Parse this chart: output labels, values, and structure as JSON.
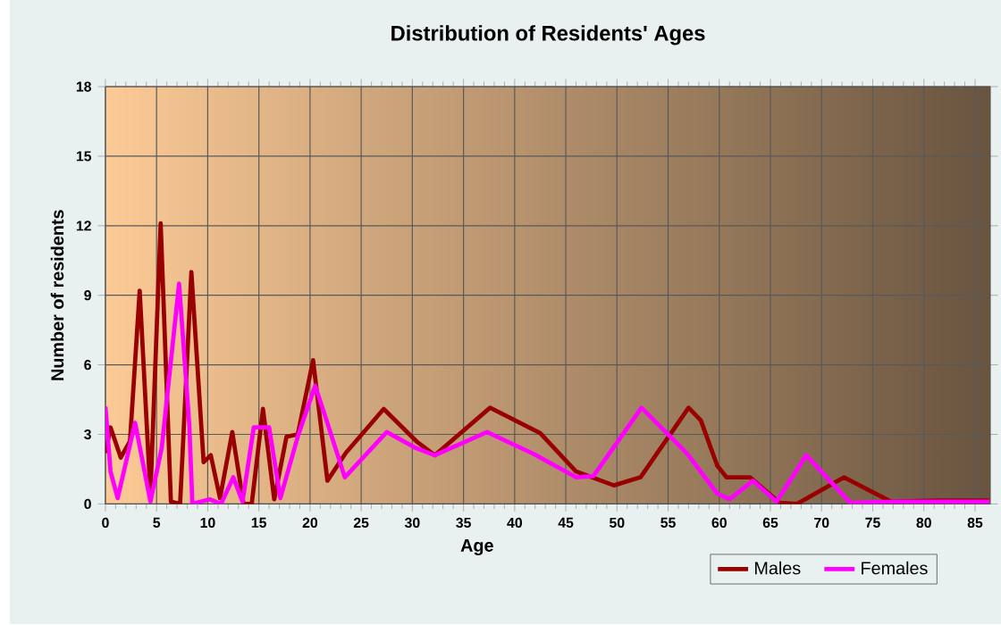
{
  "chart_data": {
    "type": "line",
    "title": "Distribution of Residents' Ages",
    "xlabel": "Age",
    "ylabel": "Number of residents",
    "xlim": [
      0,
      86.5
    ],
    "ylim": [
      0,
      18
    ],
    "xticks": [
      0,
      5,
      10,
      15,
      20,
      25,
      30,
      35,
      40,
      45,
      50,
      55,
      60,
      65,
      70,
      75,
      80,
      85
    ],
    "yticks": [
      0,
      3,
      6,
      9,
      12,
      15,
      18
    ],
    "grid": true,
    "legend": "bottom right",
    "marker": "none",
    "series": [
      {
        "name": "Males",
        "color": "#990000",
        "x": [
          0,
          0.5,
          1.5,
          2.4,
          3.35,
          4.4,
          5.4,
          6.4,
          7.3,
          8.4,
          9.6,
          10.3,
          11.2,
          12.4,
          13.5,
          14.3,
          15.4,
          16.5,
          17.7,
          18.8,
          20.3,
          21.7,
          23.5,
          27.2,
          30.4,
          32.2,
          37.6,
          42.5,
          46,
          49.7,
          52.3,
          57,
          58.2,
          59.8,
          60.7,
          63,
          65.9,
          67.6,
          72.2,
          76.8,
          81.4,
          86.4
        ],
        "values": [
          2.2,
          3.3,
          2,
          2.7,
          9.2,
          0.4,
          12.1,
          0.1,
          0,
          10,
          1.8,
          2.1,
          0.25,
          3.1,
          0,
          0,
          4.1,
          0.2,
          2.9,
          3,
          6.2,
          1,
          2.2,
          4.1,
          2.7,
          2.1,
          4.15,
          3.05,
          1.4,
          0.8,
          1.15,
          4.15,
          3.6,
          1.65,
          1.15,
          1.15,
          0.05,
          0,
          1.15,
          0.1,
          0.15,
          0.15
        ]
      },
      {
        "name": "Females",
        "color": "#ff00ff",
        "x": [
          0,
          0.5,
          1.2,
          2.9,
          4.4,
          5.5,
          7.2,
          8.2,
          8.5,
          10.2,
          11.3,
          12.5,
          13.4,
          14.5,
          16,
          17.1,
          18.8,
          20.5,
          21.4,
          23.4,
          27.5,
          30.4,
          32.2,
          37.3,
          41.9,
          46,
          47.7,
          52.4,
          56.9,
          59.8,
          61,
          63.3,
          65.6,
          68.5,
          72.8,
          77.4,
          86.4
        ],
        "values": [
          4.2,
          1.4,
          0.25,
          3.5,
          0.1,
          2.4,
          9.5,
          3.4,
          0,
          0.2,
          0,
          1.15,
          0.1,
          3.3,
          3.3,
          0.25,
          2.9,
          5.1,
          3.9,
          1.15,
          3.1,
          2.4,
          2.1,
          3.1,
          2.15,
          1.15,
          1.2,
          4.15,
          2.15,
          0.45,
          0.2,
          1,
          0.1,
          2.1,
          0.05,
          0.1,
          0.1
        ]
      }
    ]
  }
}
